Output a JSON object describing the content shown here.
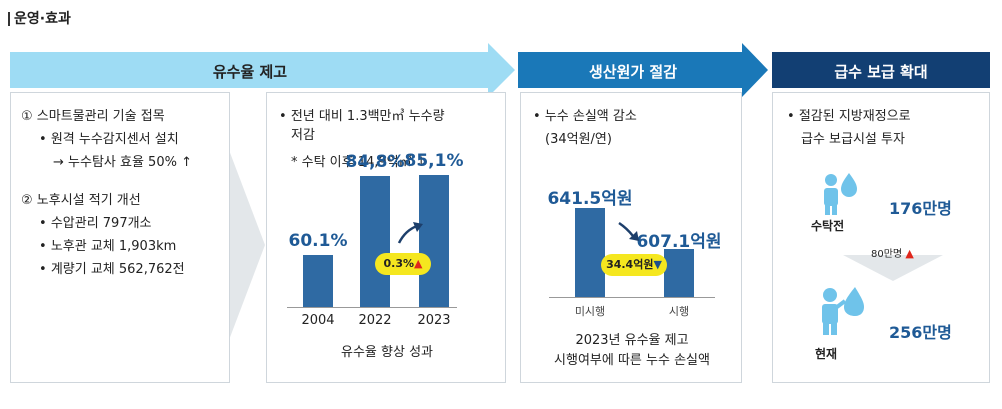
{
  "header": {
    "title": "운영·효과"
  },
  "banners": {
    "b1": "유수율 제고",
    "b2": "생산원가 절감",
    "b3": "급수 보급 확대"
  },
  "colors": {
    "banner1": "#9edcf4",
    "banner2": "#1a78b8",
    "banner3": "#123f73",
    "bar": "#2f6aa3",
    "value_text": "#1f5a96",
    "pill": "#f5e71f",
    "up_arrow": "#e0261c",
    "icon": "#6fc3ea"
  },
  "panel1": {
    "item1_title": "① 스마트물관리 기술 접목",
    "item1_b1": "원격 누수감지센서 설치",
    "item1_b2": "→ 누수탐사 효율 50% ↑",
    "item2_title": "② 노후시설 적기 개선",
    "item2_b1": "수압관리 797개소",
    "item2_b2": "노후관 교체 1,903km",
    "item2_b3": "계량기 교체 562,762전"
  },
  "panel2": {
    "line1": "전년 대비 1.3백만㎥ 누수량",
    "line2": "저감",
    "note": "* 수탁 이후 14,9억㎥ ↓",
    "caption": "유수율 향상 성과"
  },
  "panel3": {
    "line1": "누수 손실액 감소",
    "line2": "(34억원/연)",
    "caption1": "2023년 유수율 제고",
    "caption2": "시행여부에 따른 누수 손실액"
  },
  "panel4": {
    "line1": "절감된 지방재정으로",
    "line2": "급수 보급시설 투자",
    "before_label": "수탁전",
    "before_value": "176만명",
    "diff_label": "80만명",
    "after_label": "현재",
    "after_value": "256만명"
  },
  "chart_data": [
    {
      "type": "bar",
      "title": "유수율 향상 성과",
      "categories": [
        "2004",
        "2022",
        "2023"
      ],
      "values": [
        60.1,
        84.8,
        85.1
      ],
      "value_labels": [
        "60.1%",
        "84,8%",
        "85,1%"
      ],
      "annotation": "0.3%",
      "ylim": [
        0,
        100
      ]
    },
    {
      "type": "bar",
      "title": "2023년 유수율 제고 시행여부에 따른 누수 손실액",
      "categories": [
        "미시행",
        "시행"
      ],
      "values": [
        641.5,
        607.1
      ],
      "value_labels": [
        "641.5억원",
        "607.1억원"
      ],
      "annotation": "34.4억원",
      "ylim": [
        0,
        700
      ]
    }
  ]
}
